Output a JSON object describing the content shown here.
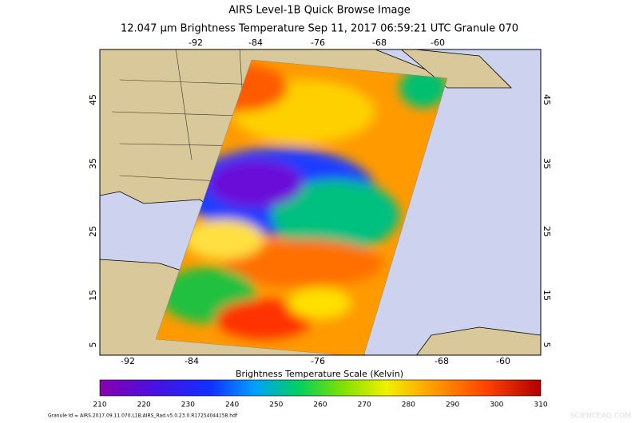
{
  "header": {
    "title": "AIRS Level-1B Quick Browse Image",
    "subtitle": "12.047 μm Brightness Temperature   Sep 11, 2017 06:59:21 UTC   Granule 070"
  },
  "map": {
    "top_lon_labels": [
      "-92",
      "-84",
      "-76",
      "-68",
      "-60"
    ],
    "bottom_lon_labels": [
      "-92",
      "-84",
      "-76",
      "-68",
      "-60"
    ],
    "left_lat_labels": [
      "45",
      "35",
      "25",
      "15",
      "5"
    ],
    "right_lat_labels": [
      "45",
      "35",
      "25",
      "15",
      "5"
    ]
  },
  "colorbar": {
    "title": "Brightness Temperature Scale (Kelvin)",
    "ticks": [
      "210",
      "220",
      "230",
      "240",
      "250",
      "260",
      "270",
      "280",
      "290",
      "300",
      "310"
    ]
  },
  "footer": {
    "granule_id": "Granule Id = AIRS.2017.09.11.070.L1B.AIRS_Rad.v5.0.23.0.R17254044158.hdf",
    "watermark": "SCIENCEAQ.COM"
  }
}
